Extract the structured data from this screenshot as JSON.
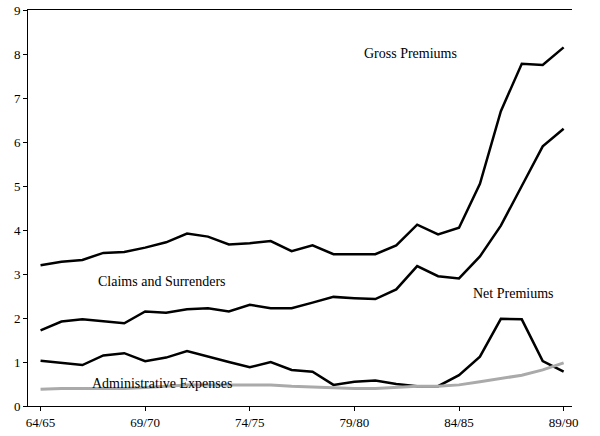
{
  "chart_data": {
    "type": "line",
    "categories": [
      "64/65",
      null,
      null,
      null,
      null,
      "69/70",
      null,
      null,
      null,
      null,
      "74/75",
      null,
      null,
      null,
      null,
      "79/80",
      null,
      null,
      null,
      null,
      "84/85",
      null,
      null,
      null,
      null,
      "89/90"
    ],
    "series": [
      {
        "name": "Gross Premiums",
        "color": "#000000",
        "values": [
          3.2,
          3.28,
          3.32,
          3.48,
          3.5,
          3.6,
          3.72,
          3.92,
          3.85,
          3.67,
          3.7,
          3.75,
          3.52,
          3.65,
          3.45,
          3.45,
          3.45,
          3.65,
          4.12,
          3.9,
          4.05,
          5.05,
          6.7,
          7.78,
          7.75,
          8.15
        ]
      },
      {
        "name": "Claims and Surrenders",
        "color": "#000000",
        "values": [
          1.72,
          1.92,
          1.97,
          1.92,
          1.88,
          2.15,
          2.12,
          2.2,
          2.22,
          2.15,
          2.3,
          2.22,
          2.22,
          2.35,
          2.48,
          2.45,
          2.43,
          2.65,
          3.18,
          2.95,
          2.9,
          3.4,
          4.1,
          5.0,
          5.9,
          6.3
        ]
      },
      {
        "name": "Net Premiums",
        "color": "#000000",
        "values": [
          1.03,
          0.98,
          0.93,
          1.15,
          1.2,
          1.02,
          1.1,
          1.25,
          1.12,
          1.0,
          0.88,
          1.0,
          0.82,
          0.78,
          0.48,
          0.55,
          0.58,
          0.5,
          0.45,
          0.45,
          0.7,
          1.12,
          1.98,
          1.97,
          1.02,
          0.78
        ]
      },
      {
        "name": "Administrative Expenses",
        "color": "#aaaaaa",
        "values": [
          0.38,
          0.4,
          0.4,
          0.4,
          0.4,
          0.42,
          0.45,
          0.48,
          0.48,
          0.48,
          0.48,
          0.48,
          0.45,
          0.43,
          0.42,
          0.4,
          0.4,
          0.42,
          0.45,
          0.45,
          0.48,
          0.55,
          0.63,
          0.7,
          0.82,
          0.98
        ]
      }
    ],
    "ylim": [
      0,
      9
    ],
    "yticks": [
      0,
      1,
      2,
      3,
      4,
      5,
      6,
      7,
      8,
      9
    ],
    "y2lim": [
      0,
      9
    ],
    "y2ticks": [
      0,
      1,
      2,
      3,
      4,
      5,
      6,
      7,
      8,
      9
    ],
    "grid": false
  }
}
